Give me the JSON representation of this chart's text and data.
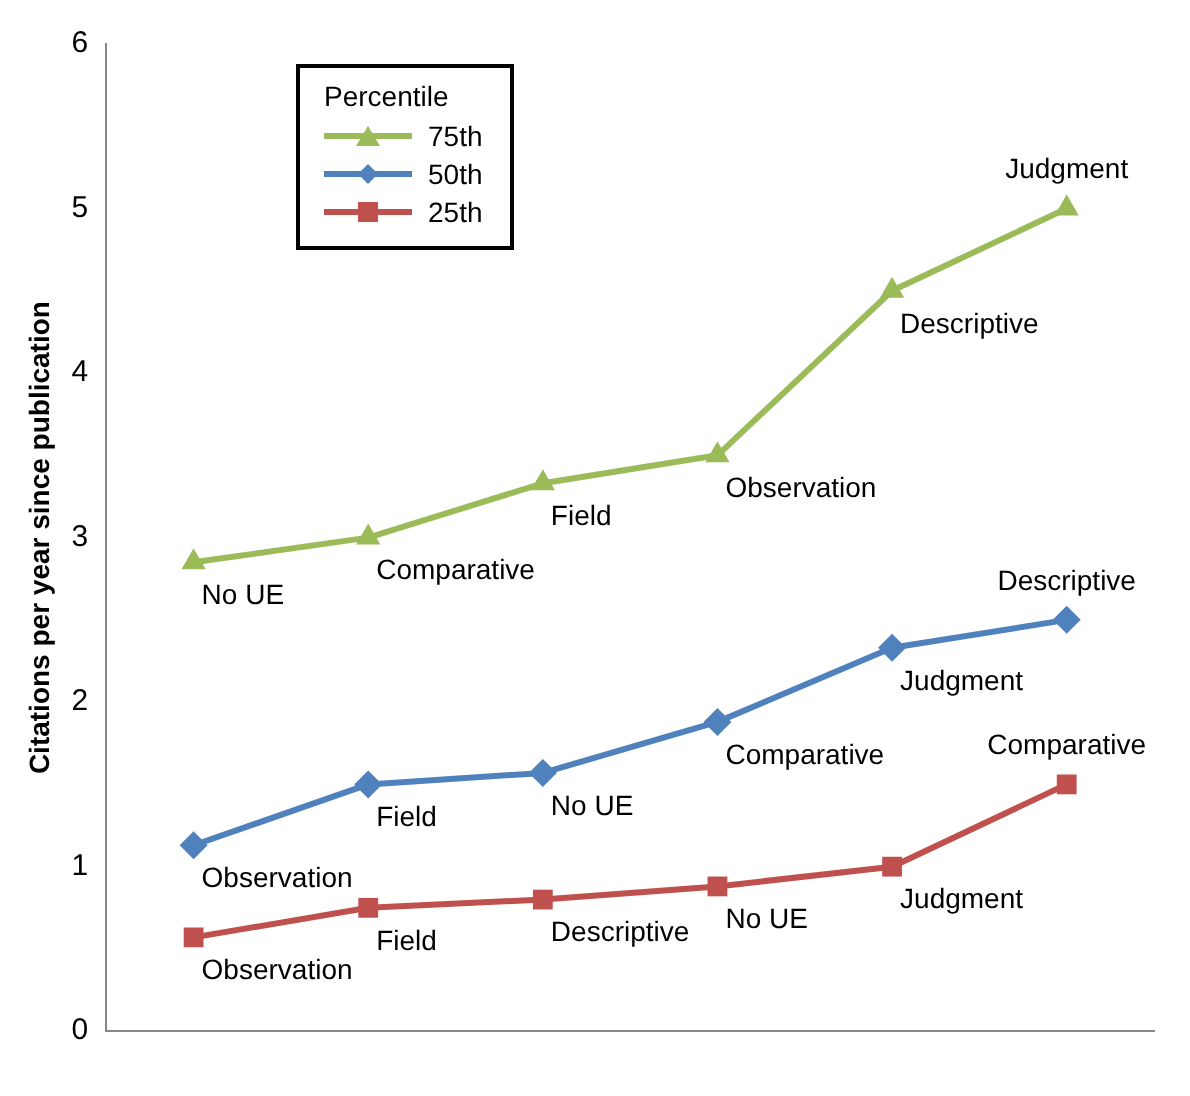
{
  "chart_data": {
    "type": "line",
    "ylabel": "Citations per year since publication",
    "legend_title": "Percentile",
    "categories": [
      null,
      null,
      null,
      null,
      null,
      null
    ],
    "series": [
      {
        "name": "75th",
        "color": "#9bbb59",
        "marker": "triangle",
        "values": [
          2.85,
          3.0,
          3.33,
          3.5,
          4.5,
          5.0
        ],
        "value_labels": [
          "No UE",
          "Comparative",
          "Field",
          "Observation",
          "Descriptive",
          "Judgment"
        ]
      },
      {
        "name": "50th",
        "color": "#4f81bd",
        "marker": "diamond",
        "values": [
          1.13,
          1.5,
          1.57,
          1.88,
          2.33,
          2.5
        ],
        "value_labels": [
          "Observation",
          "Field",
          "No UE",
          "Comparative",
          "Judgment",
          "Descriptive"
        ]
      },
      {
        "name": "25th",
        "color": "#c0504d",
        "marker": "square",
        "values": [
          0.57,
          0.75,
          0.8,
          0.88,
          1.0,
          1.5
        ],
        "value_labels": [
          "Observation",
          "Field",
          "Descriptive",
          "No UE",
          "Judgment",
          "Comparative"
        ]
      }
    ],
    "ylim": [
      0,
      6
    ],
    "yticks": [
      0,
      1,
      2,
      3,
      4,
      5,
      6
    ],
    "grid": false,
    "legend": "top left"
  }
}
